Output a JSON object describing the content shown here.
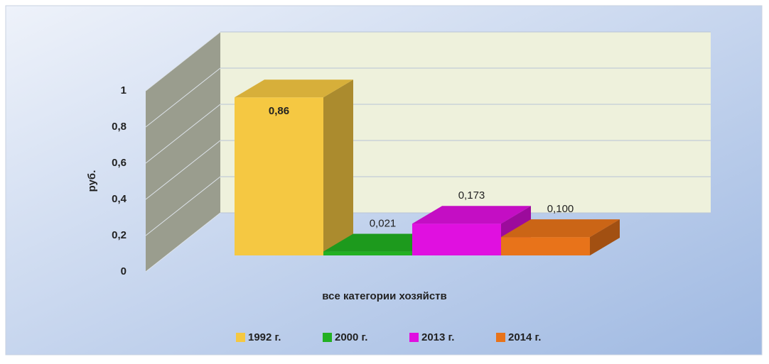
{
  "chart_data": {
    "type": "bar3d",
    "categories": [
      "все категории хозяйств"
    ],
    "ylabel": "руб.",
    "series": [
      {
        "name": "1992 г.",
        "color": "#f5c842",
        "values": [
          0.86
        ],
        "value_labels": [
          "0,86"
        ]
      },
      {
        "name": "2000 г.",
        "color": "#22b022",
        "values": [
          0.021
        ],
        "value_labels": [
          "0,021"
        ]
      },
      {
        "name": "2013 г.",
        "color": "#e010e0",
        "values": [
          0.173
        ],
        "value_labels": [
          "0,173"
        ]
      },
      {
        "name": "2014 г.",
        "color": "#e8731a",
        "values": [
          0.1
        ],
        "value_labels": [
          "0,100"
        ]
      }
    ],
    "ylim": [
      0,
      1
    ],
    "yticks": [
      0,
      {
        "value": 0.2,
        "label": "0,2"
      },
      {
        "value": 0.4,
        "label": "0,4"
      },
      {
        "value": 0.6,
        "label": "0,6"
      },
      {
        "value": 0.8,
        "label": "0,8"
      },
      1
    ],
    "grid": true,
    "legend": "bottom"
  }
}
